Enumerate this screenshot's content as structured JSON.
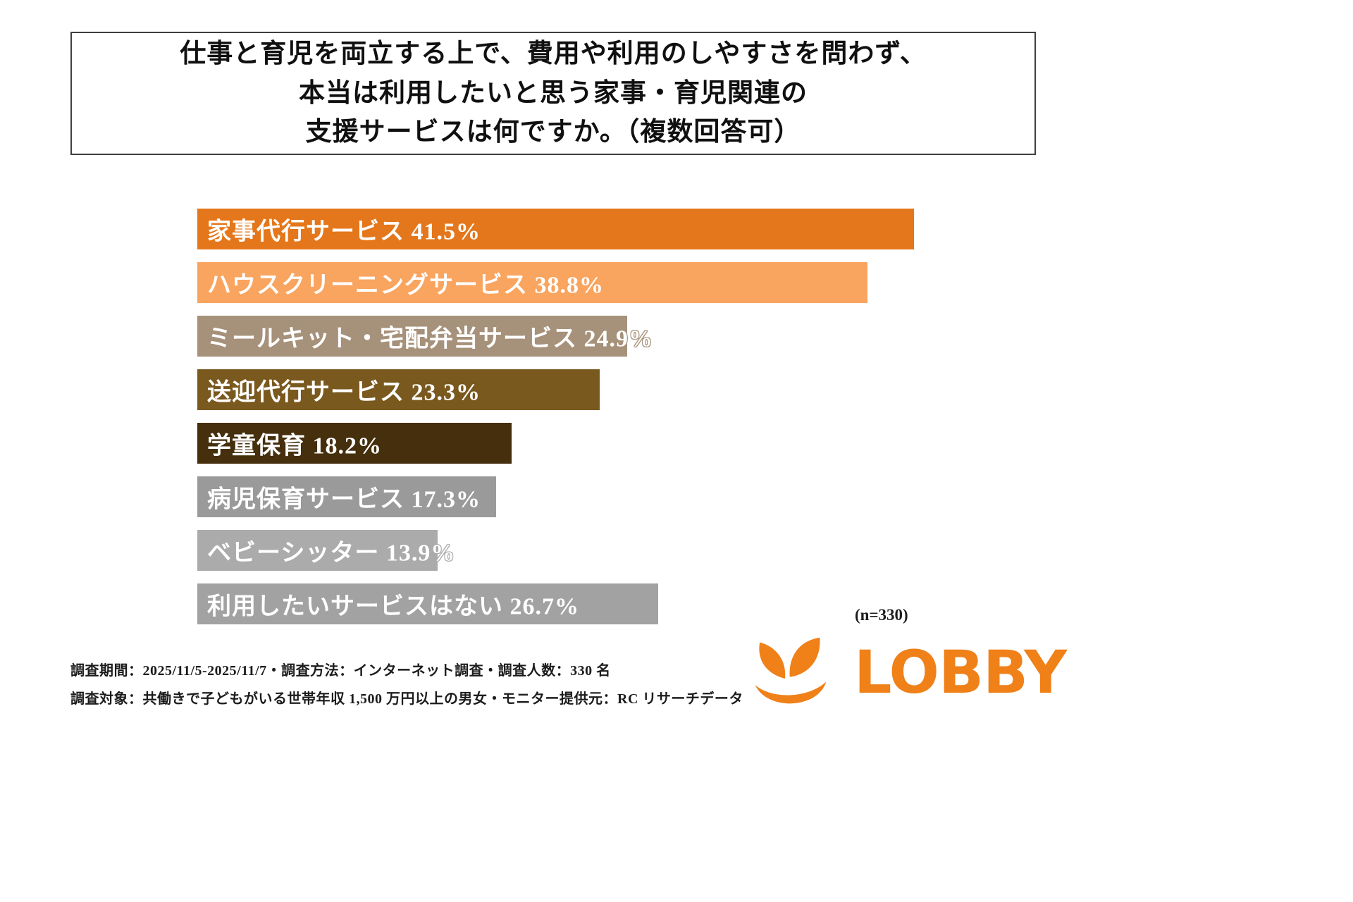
{
  "page": {
    "background": "#ffffff"
  },
  "title": {
    "line1": "仕事と育児を両立する上で、費用や利用のしやすさを問わず、",
    "line2": "本当は利用したいと思う家事・育児関連の",
    "line3": "支援サービスは何ですか。（複数回答可）"
  },
  "chart_data": {
    "type": "bar",
    "orientation": "horizontal",
    "title": "仕事と育児を両立する上で、費用や利用のしやすさを問わず、本当は利用したいと思う家事・育児関連の支援サービスは何ですか。（複数回答可）",
    "unit": "%",
    "xlim": [
      0,
      41.5
    ],
    "grid": false,
    "legend": "none",
    "n_label": "(n=330)",
    "categories": [
      "家事代行サービス",
      "ハウスクリーニングサービス",
      "ミールキット・宅配弁当サービス",
      "送迎代行サービス",
      "学童保育",
      "病児保育サービス",
      "ベビーシッター",
      "利用したいサービスはない"
    ],
    "values": [
      41.5,
      38.8,
      24.9,
      23.3,
      18.2,
      17.3,
      13.9,
      26.7
    ],
    "bar_colors": [
      "#E4771B",
      "#F9A45F",
      "#A6917A",
      "#7A591F",
      "#452F0D",
      "#9A9A9A",
      "#ABABAB",
      "#A2A2A2"
    ],
    "bar_labels": [
      "家事代行サービス 41.5%",
      "ハウスクリーニングサービス 38.8%",
      "ミールキット・宅配弁当サービス 24.9%",
      "送迎代行サービス 23.3%",
      "学童保育 18.2%",
      "病児保育サービス 17.3%",
      "ベビーシッター 13.9%",
      "利用したいサービスはない  26.7%"
    ]
  },
  "footer": {
    "line1": "調査期間：2025/11/5-2025/11/7・調査方法：インターネット調査・調査人数：330 名",
    "line2": "調査対象：共働きで子どもがいる世帯年収 1,500 万円以上の男女・モニター提供元：RC リサーチデータ"
  },
  "logo": {
    "text": "LOBBY",
    "color": "#F08018",
    "icon": "lobby-petals-icon"
  }
}
